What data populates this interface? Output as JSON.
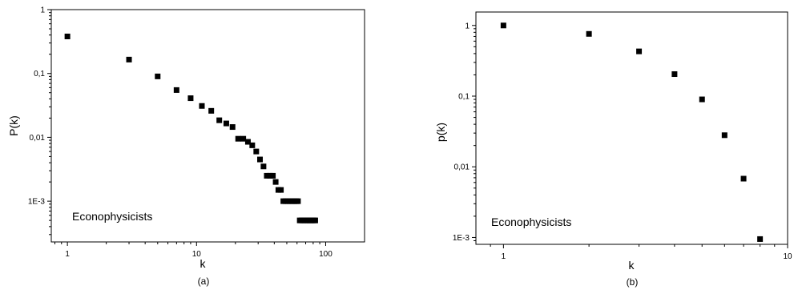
{
  "chart_data": [
    {
      "type": "scatter",
      "xscale": "log",
      "yscale": "log",
      "xlim": [
        0.75,
        200
      ],
      "ylim": [
        0.00023,
        1
      ],
      "xticks": [
        1,
        10,
        100
      ],
      "xtick_labels": [
        "1",
        "10",
        "100"
      ],
      "yticks": [
        0.001,
        0.01,
        0.1,
        1
      ],
      "ytick_labels": [
        "1E-3",
        "0,01",
        "0,1",
        "1"
      ],
      "xlabel": "k",
      "ylabel": "P(k)",
      "annotation": "Econophysicists",
      "caption": "(a)",
      "grid": false,
      "legend": "none",
      "series": [
        {
          "x": [
            1,
            3,
            5,
            7,
            9,
            11,
            13,
            15,
            17,
            19,
            21,
            23,
            25,
            27,
            29,
            31,
            33,
            35,
            37,
            39,
            41,
            43,
            45,
            47,
            49,
            51,
            53,
            55,
            57,
            59,
            61,
            63,
            65,
            67,
            69,
            71,
            73,
            75,
            77,
            79,
            81,
            83
          ],
          "y": [
            0.38,
            0.165,
            0.09,
            0.055,
            0.041,
            0.031,
            0.026,
            0.0185,
            0.0165,
            0.0145,
            0.0095,
            0.0095,
            0.0085,
            0.0075,
            0.006,
            0.0045,
            0.0035,
            0.0025,
            0.0025,
            0.0025,
            0.002,
            0.0015,
            0.0015,
            0.001,
            0.001,
            0.001,
            0.001,
            0.001,
            0.001,
            0.001,
            0.001,
            0.0005,
            0.0005,
            0.0005,
            0.0005,
            0.0005,
            0.0005,
            0.0005,
            0.0005,
            0.0005,
            0.0005,
            0.0005
          ]
        }
      ]
    },
    {
      "type": "scatter",
      "xscale": "log",
      "yscale": "log",
      "xlim": [
        0.8,
        10
      ],
      "ylim": [
        0.0008,
        1.55
      ],
      "xticks": [
        1,
        10
      ],
      "xtick_labels": [
        "1",
        "10"
      ],
      "yticks": [
        0.001,
        0.01,
        0.1,
        1
      ],
      "ytick_labels": [
        "1E-3",
        "0,01",
        "0,1",
        "1"
      ],
      "xlabel": "k",
      "ylabel": "p(k)",
      "annotation": "Econophysicists",
      "caption": "(b)",
      "grid": false,
      "legend": "none",
      "series": [
        {
          "x": [
            1,
            2,
            3,
            4,
            5,
            6,
            7,
            8
          ],
          "y": [
            1.0,
            0.76,
            0.43,
            0.205,
            0.09,
            0.028,
            0.0068,
            0.00095
          ]
        }
      ]
    }
  ]
}
